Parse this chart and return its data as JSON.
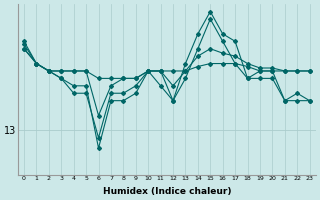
{
  "xlabel": "Humidex (Indice chaleur)",
  "bg_color": "#cce8e8",
  "grid_color": "#aacccc",
  "line_color": "#006666",
  "x_ticks": [
    0,
    1,
    2,
    3,
    4,
    5,
    6,
    7,
    8,
    9,
    10,
    11,
    12,
    13,
    14,
    15,
    16,
    17,
    18,
    19,
    20,
    21,
    22,
    23
  ],
  "ylim": [
    10.0,
    21.5
  ],
  "ytick_val": 13,
  "series": [
    [
      18.5,
      17.5,
      17.0,
      17.0,
      17.0,
      17.0,
      16.5,
      16.5,
      16.5,
      16.5,
      17.0,
      17.0,
      17.0,
      17.0,
      17.3,
      17.5,
      17.5,
      17.5,
      17.3,
      17.0,
      17.0,
      17.0,
      17.0,
      17.0
    ],
    [
      18.5,
      17.5,
      17.0,
      17.0,
      17.0,
      17.0,
      14.0,
      16.0,
      16.5,
      16.5,
      17.0,
      17.0,
      16.0,
      17.0,
      18.0,
      18.5,
      18.2,
      18.0,
      17.5,
      17.2,
      17.2,
      17.0,
      17.0,
      17.0
    ],
    [
      18.8,
      17.5,
      17.0,
      16.5,
      16.0,
      16.0,
      11.8,
      15.0,
      15.0,
      15.5,
      17.0,
      16.0,
      15.0,
      16.5,
      18.5,
      20.5,
      19.0,
      17.5,
      16.5,
      16.5,
      16.5,
      15.0,
      15.0,
      15.0
    ],
    [
      19.0,
      17.5,
      17.0,
      16.5,
      15.5,
      15.5,
      12.5,
      15.5,
      15.5,
      16.0,
      17.0,
      17.0,
      15.0,
      17.5,
      19.5,
      21.0,
      19.5,
      19.0,
      16.5,
      17.0,
      17.0,
      15.0,
      15.5,
      15.0
    ]
  ]
}
